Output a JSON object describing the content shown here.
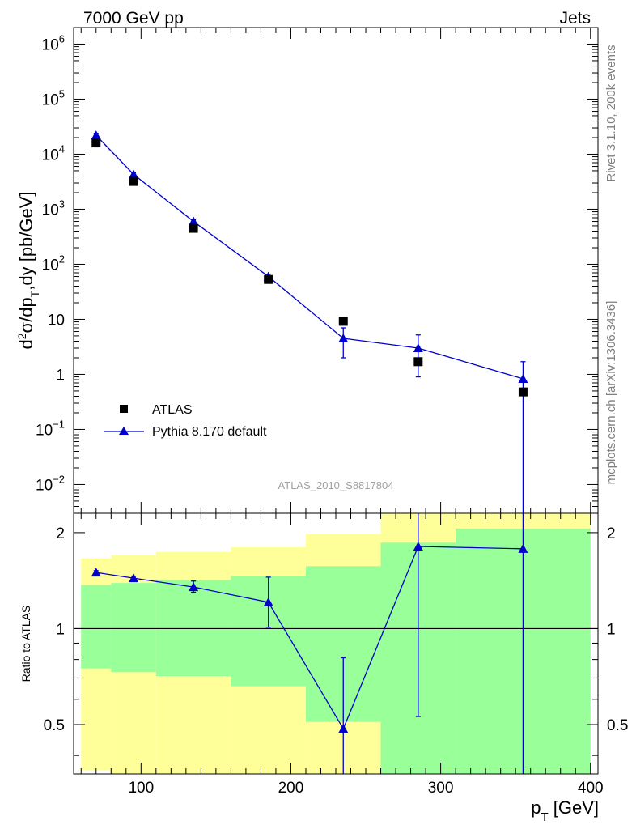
{
  "header": {
    "left": "7000 GeV pp",
    "right": "Jets",
    "side_top": "Rivet 3.1.10,  200k events",
    "side_bottom": "mcplots.cern.ch [arXiv:1306.3436]",
    "analysis_id": "ATLAS_2010_S8817804"
  },
  "chart_data": [
    {
      "type": "scatter",
      "title": "",
      "xlabel": "p_T [GeV]",
      "ylabel": "d²σ/dp_T,dy [pb/GeV]",
      "yscale": "log",
      "xlim": [
        55,
        405
      ],
      "ylim": [
        0.003,
        2000000
      ],
      "y_ticks": [
        {
          "v": 0.01,
          "base": "10",
          "exp": "−2"
        },
        {
          "v": 0.1,
          "base": "10",
          "exp": "−1"
        },
        {
          "v": 1,
          "base": "1",
          "exp": ""
        },
        {
          "v": 10,
          "base": "10",
          "exp": ""
        },
        {
          "v": 100,
          "base": "10",
          "exp": "2"
        },
        {
          "v": 1000,
          "base": "10",
          "exp": "3"
        },
        {
          "v": 10000,
          "base": "10",
          "exp": "4"
        },
        {
          "v": 100000,
          "base": "10",
          "exp": "5"
        },
        {
          "v": 1000000,
          "base": "10",
          "exp": "6"
        }
      ],
      "legend": {
        "position": "bottom-left",
        "entries": [
          "ATLAS",
          "Pythia 8.170 default"
        ]
      },
      "series": [
        {
          "name": "ATLAS",
          "color": "#000000",
          "marker": "square",
          "x": [
            70,
            95,
            135,
            185,
            235,
            285,
            355
          ],
          "y": [
            16000,
            3200,
            450,
            53,
            9.2,
            1.7,
            0.48
          ]
        },
        {
          "name": "Pythia 8.170 default",
          "color": "#0000cc",
          "marker": "triangle",
          "x": [
            70,
            95,
            135,
            185,
            235,
            285,
            355
          ],
          "y": [
            22000,
            4300,
            600,
            60,
            4.5,
            3.0,
            0.83
          ],
          "err_low": [
            20000,
            4000,
            560,
            57,
            2.0,
            0.9,
            0.001
          ],
          "err_high": [
            24000,
            4600,
            640,
            63,
            7.0,
            5.2,
            1.7
          ]
        }
      ]
    },
    {
      "type": "line",
      "xlabel": "p_T [GeV]",
      "ylabel": "Ratio to ATLAS",
      "xlim": [
        55,
        405
      ],
      "ylim": [
        0.35,
        2.3
      ],
      "x_ticks": [
        100,
        200,
        300,
        400
      ],
      "y_ticks": [
        0.5,
        1,
        2
      ],
      "reference_line": 1,
      "bins": [
        60,
        80,
        110,
        160,
        210,
        260,
        310,
        400
      ],
      "band_yellow": {
        "low": [
          0.36,
          0.35,
          0.35,
          0.35,
          0.35,
          0.35,
          0.35
        ],
        "high": [
          1.66,
          1.7,
          1.74,
          1.8,
          1.98,
          2.3,
          2.3
        ]
      },
      "band_green": {
        "low": [
          0.75,
          0.73,
          0.71,
          0.66,
          0.51,
          0.35,
          0.35
        ],
        "high": [
          1.37,
          1.39,
          1.42,
          1.46,
          1.57,
          1.86,
          2.06
        ]
      },
      "series": [
        {
          "name": "Pythia 8.170 default",
          "color": "#0000cc",
          "x": [
            70,
            95,
            135,
            185,
            235,
            285,
            355
          ],
          "y": [
            1.5,
            1.44,
            1.35,
            1.21,
            0.485,
            1.81,
            1.78
          ],
          "err_low": [
            1.48,
            1.42,
            1.3,
            1.01,
            0.3,
            0.53,
            0.3
          ],
          "err_high": [
            1.52,
            1.46,
            1.41,
            1.45,
            0.81,
            2.4,
            2.4
          ]
        }
      ]
    }
  ]
}
